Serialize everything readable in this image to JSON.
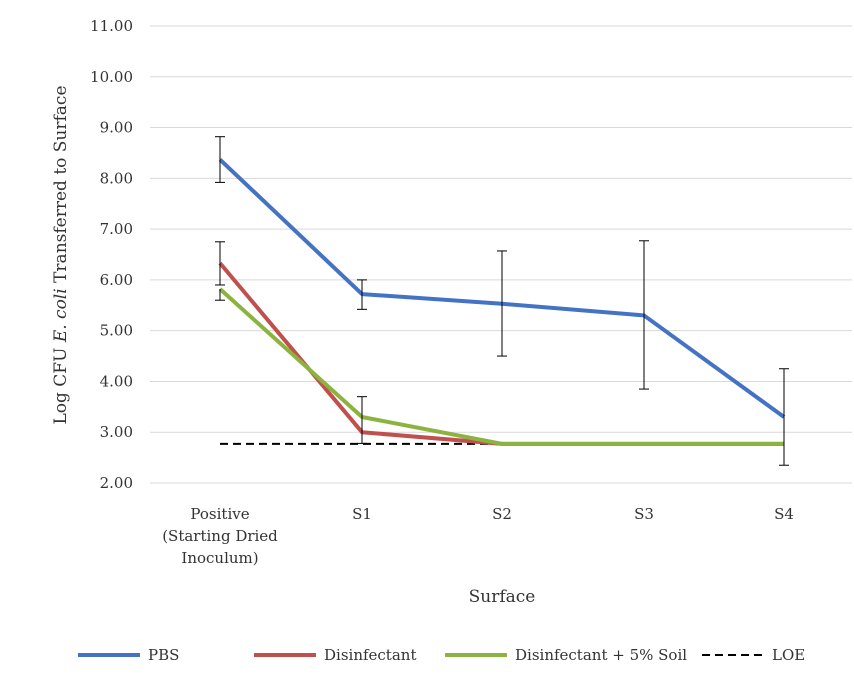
{
  "chart_data": {
    "type": "line",
    "xlabel": "Surface",
    "ylabel_prefix": "Log CFU ",
    "ylabel_italic": "E. coli",
    "ylabel_suffix": " Transferred to Surface",
    "ylim": [
      2.0,
      11.0
    ],
    "yticks": [
      "2.00",
      "3.00",
      "4.00",
      "5.00",
      "6.00",
      "7.00",
      "8.00",
      "9.00",
      "10.00",
      "11.00"
    ],
    "grid": true,
    "legend_position": "bottom",
    "categories": [
      [
        "Positive",
        "(Starting Dried",
        "Inoculum)"
      ],
      [
        "S1"
      ],
      [
        "S2"
      ],
      [
        "S3"
      ],
      [
        "S4"
      ]
    ],
    "series": [
      {
        "name": "PBS",
        "color": "#4472c4",
        "values": [
          8.37,
          5.72,
          5.53,
          5.3,
          3.3
        ],
        "error_high": [
          8.82,
          6.0,
          6.57,
          6.77,
          4.25
        ],
        "error_low": [
          7.92,
          5.42,
          4.5,
          3.85,
          2.35
        ]
      },
      {
        "name": "Disinfectant",
        "color": "#c0504d",
        "values": [
          6.33,
          3.0,
          2.77,
          2.77,
          2.77
        ],
        "error_high": [
          6.75,
          3.7,
          null,
          null,
          null
        ],
        "error_low": [
          5.9,
          2.78,
          null,
          null,
          null
        ]
      },
      {
        "name": "Disinfectant + 5% Soil",
        "color": "#8db33f",
        "values": [
          5.82,
          3.3,
          2.77,
          2.77,
          2.77
        ],
        "error_high": [
          null,
          null,
          null,
          null,
          null
        ],
        "error_low": [
          5.6,
          null,
          null,
          null,
          null
        ]
      },
      {
        "name": "LOE",
        "color": "#000000",
        "dashed": true,
        "values": [
          2.77,
          2.77,
          2.77,
          2.77,
          2.77
        ]
      }
    ]
  }
}
